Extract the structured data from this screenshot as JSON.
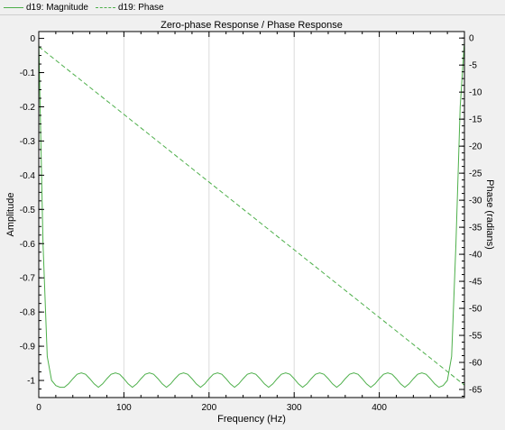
{
  "legend": [
    {
      "label": "d19: Magnitude",
      "style": "solid",
      "color": "#4daf4a"
    },
    {
      "label": "d19: Phase",
      "style": "dashed",
      "color": "#4daf4a"
    }
  ],
  "chart_data": {
    "type": "line",
    "title": "Zero-phase Response / Phase Response",
    "xlabel": "Frequency (Hz)",
    "ylabel": "Amplitude",
    "y2label": "Phase (radians)",
    "xlim": [
      0,
      500
    ],
    "ylim": [
      -1.05,
      0.02
    ],
    "y2lim": [
      -66.5,
      1.2
    ],
    "xticks": [
      0,
      100,
      200,
      300,
      400
    ],
    "yticks": [
      0,
      -0.1,
      -0.2,
      -0.3,
      -0.4,
      -0.5,
      -0.6,
      -0.7,
      -0.8,
      -0.9,
      -1
    ],
    "ytick_labels": [
      "0",
      "-0.1",
      "-0.2",
      "-0.3",
      "-0.4",
      "-0.5",
      "-0.6",
      "-0.7",
      "-0.8",
      "-0.9",
      "-1"
    ],
    "y2ticks": [
      0,
      -5,
      -10,
      -15,
      -20,
      -25,
      -30,
      -35,
      -40,
      -45,
      -50,
      -55,
      -60,
      -65
    ],
    "grid": "vertical",
    "series": [
      {
        "name": "d19: Magnitude",
        "axis": "left",
        "style": "solid",
        "color": "#4daf4a",
        "x": [
          0,
          5,
          10,
          15,
          20,
          25,
          30,
          35,
          40,
          45,
          50,
          55,
          60,
          65,
          70,
          75,
          80,
          85,
          90,
          95,
          100,
          105,
          110,
          115,
          120,
          125,
          130,
          135,
          140,
          145,
          150,
          155,
          160,
          165,
          170,
          175,
          180,
          185,
          190,
          195,
          200,
          205,
          210,
          215,
          220,
          225,
          230,
          235,
          240,
          245,
          250,
          255,
          260,
          265,
          270,
          275,
          280,
          285,
          290,
          295,
          300,
          305,
          310,
          315,
          320,
          325,
          330,
          335,
          340,
          345,
          350,
          355,
          360,
          365,
          370,
          375,
          380,
          385,
          390,
          395,
          400,
          405,
          410,
          415,
          420,
          425,
          430,
          435,
          440,
          445,
          450,
          455,
          460,
          465,
          470,
          475,
          480,
          485,
          490,
          495,
          500
        ],
        "y": [
          -0.01,
          -0.6,
          -0.93,
          -1.0,
          -1.015,
          -1.02,
          -1.02,
          -1.01,
          -0.995,
          -0.982,
          -0.978,
          -0.982,
          -0.995,
          -1.01,
          -1.02,
          -1.01,
          -0.995,
          -0.982,
          -0.978,
          -0.982,
          -0.995,
          -1.01,
          -1.02,
          -1.01,
          -0.995,
          -0.982,
          -0.978,
          -0.982,
          -0.995,
          -1.01,
          -1.02,
          -1.01,
          -0.995,
          -0.982,
          -0.978,
          -0.982,
          -0.995,
          -1.01,
          -1.02,
          -1.01,
          -0.995,
          -0.982,
          -0.978,
          -0.982,
          -0.995,
          -1.01,
          -1.02,
          -1.01,
          -0.995,
          -0.982,
          -0.978,
          -0.982,
          -0.995,
          -1.01,
          -1.02,
          -1.01,
          -0.995,
          -0.982,
          -0.978,
          -0.982,
          -0.995,
          -1.01,
          -1.02,
          -1.01,
          -0.995,
          -0.982,
          -0.978,
          -0.982,
          -0.995,
          -1.01,
          -1.02,
          -1.01,
          -0.995,
          -0.982,
          -0.978,
          -0.982,
          -0.995,
          -1.01,
          -1.02,
          -1.01,
          -0.995,
          -0.982,
          -0.978,
          -0.982,
          -0.995,
          -1.01,
          -1.02,
          -1.01,
          -0.995,
          -0.982,
          -0.978,
          -0.982,
          -0.995,
          -1.01,
          -1.02,
          -1.015,
          -1.0,
          -0.93,
          -0.6,
          -0.2,
          -0.01
        ]
      },
      {
        "name": "d19: Phase",
        "axis": "right",
        "style": "dashed",
        "color": "#4daf4a",
        "x": [
          0,
          500
        ],
        "y": [
          -1.6,
          -64.2
        ]
      }
    ]
  }
}
